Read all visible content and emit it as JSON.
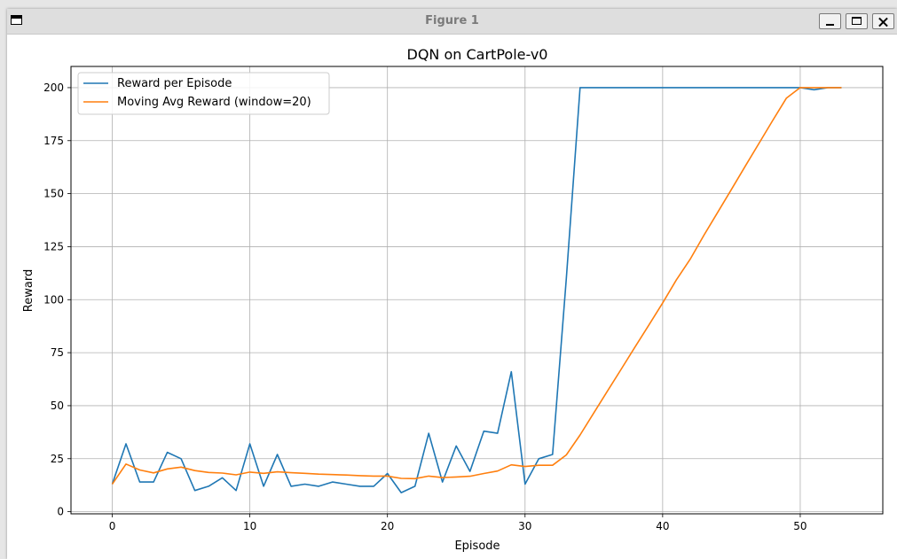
{
  "window": {
    "title": "Figure 1",
    "icon": "window-icon",
    "buttons": [
      "minimize-icon",
      "maximize-icon",
      "close-icon"
    ]
  },
  "chart_data": {
    "type": "line",
    "title": "DQN on CartPole-v0",
    "xlabel": "Episode",
    "ylabel": "Reward",
    "xlim": [
      -3,
      56
    ],
    "ylim": [
      -1,
      210
    ],
    "xticks": [
      0,
      10,
      20,
      30,
      40,
      50
    ],
    "yticks": [
      0,
      25,
      50,
      75,
      100,
      125,
      150,
      175,
      200
    ],
    "grid": true,
    "legend_position": "top-left",
    "series": [
      {
        "name": "Reward per Episode",
        "color": "#1f77b4",
        "x": [
          0,
          1,
          2,
          3,
          4,
          5,
          6,
          7,
          8,
          9,
          10,
          11,
          12,
          13,
          14,
          15,
          16,
          17,
          18,
          19,
          20,
          21,
          22,
          23,
          24,
          25,
          26,
          27,
          28,
          29,
          30,
          31,
          32,
          33,
          34,
          35,
          36,
          37,
          38,
          39,
          40,
          41,
          42,
          43,
          44,
          45,
          46,
          47,
          48,
          49,
          50,
          51,
          52,
          53
        ],
        "values": [
          13,
          32,
          14,
          14,
          28,
          25,
          10,
          12,
          16,
          10,
          32,
          12,
          27,
          12,
          13,
          12,
          14,
          13,
          12,
          12,
          18,
          9,
          12,
          37,
          14,
          31,
          19,
          38,
          37,
          66,
          13,
          25,
          27,
          110,
          200,
          200,
          200,
          200,
          200,
          200,
          200,
          200,
          200,
          200,
          200,
          200,
          200,
          200,
          200,
          200,
          200,
          199,
          200,
          200
        ]
      },
      {
        "name": "Moving Avg Reward (window=20)",
        "color": "#ff7f0e",
        "x": [
          0,
          1,
          2,
          3,
          4,
          5,
          6,
          7,
          8,
          9,
          10,
          11,
          12,
          13,
          14,
          15,
          16,
          17,
          18,
          19,
          20,
          21,
          22,
          23,
          24,
          25,
          26,
          27,
          28,
          29,
          30,
          31,
          32,
          33,
          34,
          35,
          36,
          37,
          38,
          39,
          40,
          41,
          42,
          43,
          44,
          45,
          46,
          47,
          48,
          49,
          50,
          51,
          52,
          53
        ],
        "values": [
          13,
          22.5,
          19.7,
          18.3,
          20.2,
          21,
          19.4,
          18.5,
          18.2,
          17.4,
          18.7,
          18.1,
          18.8,
          18.4,
          18.1,
          17.7,
          17.5,
          17.3,
          17.0,
          16.8,
          16.8,
          15.7,
          15.6,
          16.8,
          16.1,
          16.4,
          16.7,
          18.0,
          19.2,
          22.1,
          21.3,
          21.9,
          21.9,
          26.8,
          36.2,
          46.6,
          57.0,
          67.3,
          77.7,
          88.1,
          98.5,
          109.4,
          119.1,
          130.4,
          141.2,
          152.0,
          162.9,
          173.7,
          184.5,
          195.1,
          200.0,
          200.0,
          200.0,
          200.0
        ]
      }
    ]
  }
}
